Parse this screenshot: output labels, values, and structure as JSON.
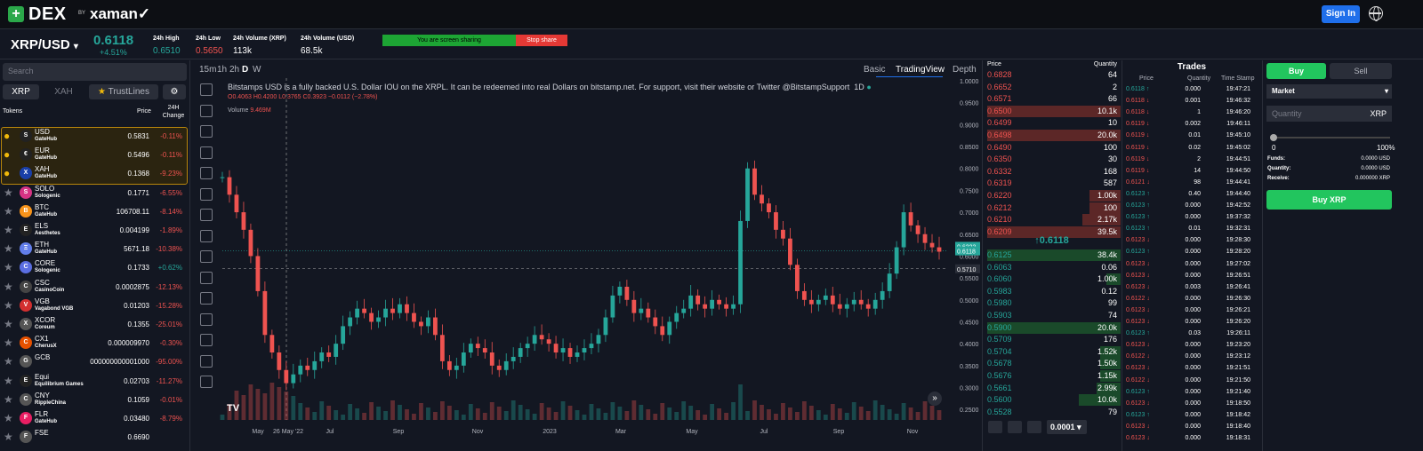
{
  "header": {
    "logo_text": "DEX",
    "logo_by": "BY",
    "brand": "xaman✓",
    "signin_label": "Sign In"
  },
  "ticker": {
    "pair": "XRP/USD",
    "price": "0.6118",
    "change": "+4.51%",
    "stats": [
      {
        "label": "24h High",
        "value": "0.6510",
        "color": "#26a69a"
      },
      {
        "label": "24h Low",
        "value": "0.5650",
        "color": "#ef5350"
      },
      {
        "label": "24h Volume (XRP)",
        "value": "113k",
        "color": "#ffffff"
      },
      {
        "label": "24h Volume (USD)",
        "value": "68.5k",
        "color": "#ffffff"
      }
    ],
    "sharing_text": "You are screen sharing",
    "stop_share": "Stop share"
  },
  "sidebar": {
    "search_placeholder": "Search",
    "tabs": [
      "XRP",
      "XAH",
      "TrustLines"
    ],
    "col_tokens": "Tokens",
    "col_price": "Price",
    "col_change": "24H Change",
    "tokens": [
      {
        "name": "USD",
        "issuer": "GateHub",
        "price": "0.5831",
        "change": "-0.11%",
        "up": false,
        "icon": "S",
        "color": "#222",
        "fav": true
      },
      {
        "name": "EUR",
        "issuer": "GateHub",
        "price": "0.5496",
        "change": "-0.11%",
        "up": false,
        "icon": "€",
        "color": "#222",
        "fav": true
      },
      {
        "name": "XAH",
        "issuer": "GateHub",
        "price": "0.1368",
        "change": "-9.23%",
        "up": false,
        "icon": "X",
        "color": "#1a3fa8",
        "fav": true
      },
      {
        "name": "SOLO",
        "issuer": "Sologenic",
        "price": "0.1771",
        "change": "-6.55%",
        "up": false,
        "icon": "S",
        "color": "#d63384",
        "fav": false
      },
      {
        "name": "BTC",
        "issuer": "GateHub",
        "price": "106708.11",
        "change": "-8.14%",
        "up": false,
        "icon": "B",
        "color": "#f7931a",
        "fav": false
      },
      {
        "name": "ELS",
        "issuer": "Aesthetes",
        "price": "0.004199",
        "change": "-1.89%",
        "up": false,
        "icon": "E",
        "color": "#222",
        "fav": false
      },
      {
        "name": "ETH",
        "issuer": "GateHub",
        "price": "5671.18",
        "change": "-10.38%",
        "up": false,
        "icon": "Ξ",
        "color": "#627eea",
        "fav": false
      },
      {
        "name": "CORE",
        "issuer": "Sologenic",
        "price": "0.1733",
        "change": "+0.62%",
        "up": true,
        "icon": "C",
        "color": "#5b6ee1",
        "fav": false
      },
      {
        "name": "CSC",
        "issuer": "CasinoCoin",
        "price": "0.0002875",
        "change": "-12.13%",
        "up": false,
        "icon": "C",
        "color": "#444",
        "fav": false
      },
      {
        "name": "VGB",
        "issuer": "Vagabond VGB",
        "price": "0.01203",
        "change": "-15.28%",
        "up": false,
        "icon": "V",
        "color": "#d32f2f",
        "fav": false
      },
      {
        "name": "XCOR",
        "issuer": "Coreum",
        "price": "0.1355",
        "change": "-25.01%",
        "up": false,
        "icon": "X",
        "color": "#555",
        "fav": false
      },
      {
        "name": "CX1",
        "issuer": "CherusX",
        "price": "0.000009970",
        "change": "-0.30%",
        "up": false,
        "icon": "C",
        "color": "#e65100",
        "fav": false
      },
      {
        "name": "GCB",
        "issuer": "",
        "price": "000000000001000",
        "change": "-95.00%",
        "up": false,
        "icon": "G",
        "color": "#555",
        "fav": false
      },
      {
        "name": "Equi",
        "issuer": "Equilibrium Games",
        "price": "0.02703",
        "change": "-11.27%",
        "up": false,
        "icon": "E",
        "color": "#222",
        "fav": false
      },
      {
        "name": "CNY",
        "issuer": "RippleChina",
        "price": "0.1059",
        "change": "-0.01%",
        "up": false,
        "icon": "C",
        "color": "#555",
        "fav": false
      },
      {
        "name": "FLR",
        "issuer": "GateHub",
        "price": "0.03480",
        "change": "-8.79%",
        "up": false,
        "icon": "F",
        "color": "#e91e63",
        "fav": false
      },
      {
        "name": "FSE",
        "issuer": "",
        "price": "0.6690",
        "change": "",
        "up": false,
        "icon": "F",
        "color": "#555",
        "fav": false
      }
    ]
  },
  "chart_tabs": {
    "intervals": [
      "15m",
      "1h",
      "2h",
      "D",
      "W"
    ],
    "views": [
      "Basic",
      "TradingView",
      "Depth"
    ]
  },
  "chart_data": {
    "type": "candlestick",
    "description_text": "Bitstamps USD is a fully backed U.S. Dollar IOU on the XRPL. It can be redeemed into real Dollars on bitstamp.net. For support, visit their website or Twitter @BitstampSupport",
    "timeframe": "1D",
    "ohlc_text": {
      "o": "O0.4063",
      "h": "H0.4200",
      "l": "L0.3765",
      "c": "C0.3923",
      "chg": "−0.0112 (−2.78%)"
    },
    "volume_label": "Volume",
    "volume_value": "9.469M",
    "y_ticks": [
      "1.0000",
      "0.9500",
      "0.9000",
      "0.8500",
      "0.8000",
      "0.7500",
      "0.7000",
      "0.6500",
      "0.6000",
      "0.5500",
      "0.5000",
      "0.4500",
      "0.4000",
      "0.3500",
      "0.3000",
      "0.2500"
    ],
    "ylim": [
      0.22,
      1.0
    ],
    "x_ticks": [
      "May",
      "26 May '22",
      "Jul",
      "Sep",
      "Nov",
      "2023",
      "Mar",
      "May",
      "Jul",
      "Sep",
      "Nov"
    ],
    "price_markers": [
      {
        "value": "0.6223",
        "color": "#26a69a"
      },
      {
        "value": "0.6118",
        "color": "#26a69a"
      },
      {
        "value": "0.5710",
        "color": "#2a2e39"
      }
    ],
    "series": [
      {
        "name": "close",
        "values": [
          0.78,
          0.74,
          0.7,
          0.66,
          0.6,
          0.52,
          0.42,
          0.38,
          0.34,
          0.31,
          0.33,
          0.35,
          0.34,
          0.36,
          0.38,
          0.37,
          0.4,
          0.44,
          0.46,
          0.48,
          0.47,
          0.45,
          0.46,
          0.48,
          0.47,
          0.49,
          0.47,
          0.45,
          0.44,
          0.46,
          0.42,
          0.36,
          0.34,
          0.35,
          0.38,
          0.4,
          0.39,
          0.38,
          0.35,
          0.34,
          0.36,
          0.37,
          0.39,
          0.4,
          0.42,
          0.41,
          0.4,
          0.38,
          0.39,
          0.37,
          0.38,
          0.39,
          0.4,
          0.42,
          0.46,
          0.51,
          0.53,
          0.5,
          0.47,
          0.48,
          0.46,
          0.44,
          0.42,
          0.45,
          0.47,
          0.48,
          0.51,
          0.49,
          0.48,
          0.5,
          0.49,
          0.48,
          0.49,
          0.68,
          0.8,
          0.74,
          0.72,
          0.7,
          0.66,
          0.64,
          0.58,
          0.52,
          0.5,
          0.49,
          0.5,
          0.51,
          0.49,
          0.48,
          0.49,
          0.5,
          0.49,
          0.48,
          0.5,
          0.52,
          0.56,
          0.62,
          0.7,
          0.67,
          0.65,
          0.63,
          0.62,
          0.61
        ]
      }
    ]
  },
  "orderbook": {
    "col_price": "Price",
    "col_qty": "Quantity",
    "asks": [
      {
        "price": "0.6828",
        "qty": "64",
        "depth": 0
      },
      {
        "price": "0.6652",
        "qty": "2",
        "depth": 0
      },
      {
        "price": "0.6571",
        "qty": "66",
        "depth": 0
      },
      {
        "price": "0.6500",
        "qty": "10.1k",
        "depth": 1
      },
      {
        "price": "0.6499",
        "qty": "10",
        "depth": 0
      },
      {
        "price": "0.6498",
        "qty": "20.0k",
        "depth": 1
      },
      {
        "price": "0.6490",
        "qty": "100",
        "depth": 0
      },
      {
        "price": "0.6350",
        "qty": "30",
        "depth": 0
      },
      {
        "price": "0.6332",
        "qty": "168",
        "depth": 0
      },
      {
        "price": "0.6319",
        "qty": "587",
        "depth": 0
      },
      {
        "price": "0.6220",
        "qty": "1.00k",
        "depth": 0.45
      },
      {
        "price": "0.6212",
        "qty": "100",
        "depth": 0.45
      },
      {
        "price": "0.6210",
        "qty": "2.17k",
        "depth": 0.55
      },
      {
        "price": "0.6209",
        "qty": "39.5k",
        "depth": 1
      }
    ],
    "mid": "↑0.6118",
    "bids": [
      {
        "price": "0.6125",
        "qty": "38.4k",
        "depth": 1
      },
      {
        "price": "0.6063",
        "qty": "0.06",
        "depth": 0
      },
      {
        "price": "0.6060",
        "qty": "1.00k",
        "depth": 0.2
      },
      {
        "price": "0.5983",
        "qty": "0.12",
        "depth": 0
      },
      {
        "price": "0.5980",
        "qty": "99",
        "depth": 0
      },
      {
        "price": "0.5903",
        "qty": "74",
        "depth": 0
      },
      {
        "price": "0.5900",
        "qty": "20.0k",
        "depth": 1
      },
      {
        "price": "0.5709",
        "qty": "176",
        "depth": 0
      },
      {
        "price": "0.5704",
        "qty": "1.52k",
        "depth": 0.3
      },
      {
        "price": "0.5678",
        "qty": "1.50k",
        "depth": 0.3
      },
      {
        "price": "0.5676",
        "qty": "1.15k",
        "depth": 0.3
      },
      {
        "price": "0.5661",
        "qty": "2.99k",
        "depth": 0.35
      },
      {
        "price": "0.5600",
        "qty": "10.0k",
        "depth": 0.6
      },
      {
        "price": "0.5528",
        "qty": "79",
        "depth": 0
      }
    ],
    "precision": "0.0001"
  },
  "trades": {
    "title": "Trades",
    "col_price": "Price",
    "col_qty": "Quantity",
    "col_time": "Time Stamp",
    "rows": [
      {
        "p": "0.6118 ↑",
        "q": "0.000",
        "t": "19:47:21",
        "up": true
      },
      {
        "p": "0.6118 ↓",
        "q": "0.001",
        "t": "19:46:32",
        "up": false
      },
      {
        "p": "0.6118 ↓",
        "q": "1",
        "t": "19:46:20",
        "up": false
      },
      {
        "p": "0.6119 ↓",
        "q": "0.002",
        "t": "19:46:11",
        "up": false
      },
      {
        "p": "0.6119 ↓",
        "q": "0.01",
        "t": "19:45:10",
        "up": false
      },
      {
        "p": "0.6119 ↓",
        "q": "0.02",
        "t": "19:45:02",
        "up": false
      },
      {
        "p": "0.6119 ↓",
        "q": "2",
        "t": "19:44:51",
        "up": false
      },
      {
        "p": "0.6119 ↓",
        "q": "14",
        "t": "19:44:50",
        "up": false
      },
      {
        "p": "0.6121 ↓",
        "q": "98",
        "t": "19:44:41",
        "up": false
      },
      {
        "p": "0.6123 ↑",
        "q": "0.40",
        "t": "19:44:40",
        "up": true
      },
      {
        "p": "0.6123 ↑",
        "q": "0.000",
        "t": "19:42:52",
        "up": true
      },
      {
        "p": "0.6123 ↑",
        "q": "0.000",
        "t": "19:37:32",
        "up": true
      },
      {
        "p": "0.6123 ↑",
        "q": "0.01",
        "t": "19:32:31",
        "up": true
      },
      {
        "p": "0.6123 ↓",
        "q": "0.000",
        "t": "19:28:30",
        "up": false
      },
      {
        "p": "0.6123 ↑",
        "q": "0.000",
        "t": "19:28:20",
        "up": true
      },
      {
        "p": "0.6123 ↓",
        "q": "0.000",
        "t": "19:27:02",
        "up": false
      },
      {
        "p": "0.6123 ↓",
        "q": "0.000",
        "t": "19:26:51",
        "up": false
      },
      {
        "p": "0.6123 ↓",
        "q": "0.003",
        "t": "19:26:41",
        "up": false
      },
      {
        "p": "0.6122 ↓",
        "q": "0.000",
        "t": "19:26:30",
        "up": false
      },
      {
        "p": "0.6123 ↓",
        "q": "0.000",
        "t": "19:26:21",
        "up": false
      },
      {
        "p": "0.6123 ↓",
        "q": "0.000",
        "t": "19:26:20",
        "up": false
      },
      {
        "p": "0.6123 ↑",
        "q": "0.03",
        "t": "19:26:11",
        "up": true
      },
      {
        "p": "0.6123 ↓",
        "q": "0.000",
        "t": "19:23:20",
        "up": false
      },
      {
        "p": "0.6122 ↓",
        "q": "0.000",
        "t": "19:23:12",
        "up": false
      },
      {
        "p": "0.6123 ↓",
        "q": "0.000",
        "t": "19:21:51",
        "up": false
      },
      {
        "p": "0.6122 ↓",
        "q": "0.000",
        "t": "19:21:50",
        "up": false
      },
      {
        "p": "0.6123 ↑",
        "q": "0.000",
        "t": "19:21:40",
        "up": true
      },
      {
        "p": "0.6123 ↓",
        "q": "0.000",
        "t": "19:18:50",
        "up": false
      },
      {
        "p": "0.6123 ↑",
        "q": "0.000",
        "t": "19:18:42",
        "up": true
      },
      {
        "p": "0.6123 ↓",
        "q": "0.000",
        "t": "19:18:40",
        "up": false
      },
      {
        "p": "0.6123 ↓",
        "q": "0.000",
        "t": "19:18:31",
        "up": false
      }
    ]
  },
  "order": {
    "buy": "Buy",
    "sell": "Sell",
    "type": "Market",
    "qty_placeholder": "Quantity",
    "qty_unit": "XRP",
    "slider_min": "0",
    "slider_max": "100%",
    "slider_value": 0,
    "funds_label": "Funds:",
    "funds": "0.0000 USD",
    "quantity_label": "Quantity:",
    "quantity": "0.0000 USD",
    "receive_label": "Receive:",
    "receive": "0.000000 XRP",
    "submit": "Buy XRP"
  },
  "colors": {
    "up": "#26a69a",
    "down": "#ef5350",
    "accent": "#1f6feb",
    "buy": "#22c55e"
  }
}
